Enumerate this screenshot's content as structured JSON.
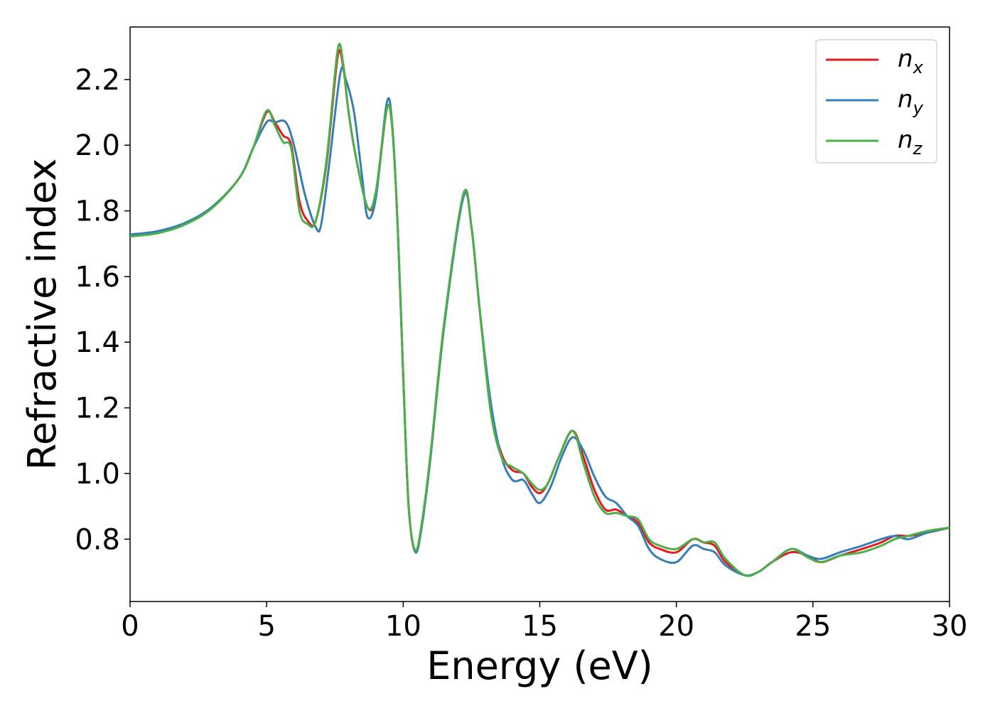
{
  "chart_data": {
    "type": "line",
    "title": "",
    "xlabel": "Energy (eV)",
    "ylabel": "Refractive index",
    "xlim": [
      0,
      30
    ],
    "ylim": [
      0.61,
      2.36
    ],
    "xticks": [
      0,
      5,
      10,
      15,
      20,
      25,
      30
    ],
    "yticks": [
      0.8,
      1.0,
      1.2,
      1.4,
      1.6,
      1.8,
      2.0,
      2.2
    ],
    "xtick_labels": [
      "0",
      "5",
      "10",
      "15",
      "20",
      "25",
      "30"
    ],
    "ytick_labels": [
      "0.8",
      "1.0",
      "1.2",
      "1.4",
      "1.6",
      "1.8",
      "2.0",
      "2.2"
    ],
    "grid": false,
    "legend_position": "top-right",
    "series": [
      {
        "name": "n",
        "subscript": "x",
        "color": "#e41a1c",
        "points": [
          [
            0,
            1.725
          ],
          [
            1,
            1.735
          ],
          [
            2,
            1.76
          ],
          [
            3,
            1.81
          ],
          [
            4,
            1.9
          ],
          [
            4.5,
            1.99
          ],
          [
            5,
            2.1
          ],
          [
            5.3,
            2.07
          ],
          [
            5.6,
            2.03
          ],
          [
            5.9,
            2.0
          ],
          [
            6.2,
            1.83
          ],
          [
            6.5,
            1.77
          ],
          [
            6.8,
            1.77
          ],
          [
            7.2,
            1.95
          ],
          [
            7.6,
            2.27
          ],
          [
            7.8,
            2.24
          ],
          [
            8.0,
            2.1
          ],
          [
            8.3,
            1.95
          ],
          [
            8.7,
            1.81
          ],
          [
            9.0,
            1.85
          ],
          [
            9.4,
            2.11
          ],
          [
            9.6,
            2.05
          ],
          [
            9.8,
            1.75
          ],
          [
            10.0,
            1.3
          ],
          [
            10.2,
            0.9
          ],
          [
            10.45,
            0.76
          ],
          [
            10.7,
            0.85
          ],
          [
            11.0,
            1.05
          ],
          [
            11.5,
            1.45
          ],
          [
            12.2,
            1.85
          ],
          [
            12.5,
            1.75
          ],
          [
            12.8,
            1.5
          ],
          [
            13.2,
            1.2
          ],
          [
            13.6,
            1.06
          ],
          [
            14.0,
            1.01
          ],
          [
            14.4,
            1.0
          ],
          [
            14.7,
            0.96
          ],
          [
            15.0,
            0.94
          ],
          [
            15.3,
            0.97
          ],
          [
            15.7,
            1.05
          ],
          [
            16.2,
            1.13
          ],
          [
            16.6,
            1.05
          ],
          [
            17.0,
            0.95
          ],
          [
            17.4,
            0.89
          ],
          [
            17.8,
            0.89
          ],
          [
            18.2,
            0.87
          ],
          [
            18.6,
            0.85
          ],
          [
            19.0,
            0.79
          ],
          [
            19.4,
            0.77
          ],
          [
            20.0,
            0.76
          ],
          [
            20.6,
            0.8
          ],
          [
            21.0,
            0.79
          ],
          [
            21.4,
            0.78
          ],
          [
            21.8,
            0.73
          ],
          [
            22.5,
            0.69
          ],
          [
            23.0,
            0.7
          ],
          [
            23.5,
            0.73
          ],
          [
            24.2,
            0.76
          ],
          [
            24.8,
            0.75
          ],
          [
            25.3,
            0.73
          ],
          [
            26.0,
            0.75
          ],
          [
            26.8,
            0.77
          ],
          [
            27.5,
            0.79
          ],
          [
            28.0,
            0.81
          ],
          [
            28.5,
            0.81
          ],
          [
            29.2,
            0.82
          ],
          [
            30,
            0.835
          ]
        ]
      },
      {
        "name": "n",
        "subscript": "y",
        "color": "#377eb8",
        "points": [
          [
            0,
            1.728
          ],
          [
            1,
            1.738
          ],
          [
            2,
            1.763
          ],
          [
            3,
            1.812
          ],
          [
            4,
            1.9
          ],
          [
            4.5,
            1.99
          ],
          [
            5,
            2.07
          ],
          [
            5.3,
            2.07
          ],
          [
            5.7,
            2.07
          ],
          [
            6.0,
            2.0
          ],
          [
            6.4,
            1.85
          ],
          [
            6.8,
            1.75
          ],
          [
            7.0,
            1.76
          ],
          [
            7.3,
            1.95
          ],
          [
            7.7,
            2.22
          ],
          [
            7.9,
            2.2
          ],
          [
            8.2,
            2.1
          ],
          [
            8.5,
            1.9
          ],
          [
            8.7,
            1.78
          ],
          [
            9.0,
            1.84
          ],
          [
            9.4,
            2.13
          ],
          [
            9.6,
            2.06
          ],
          [
            9.8,
            1.75
          ],
          [
            10.0,
            1.3
          ],
          [
            10.2,
            0.9
          ],
          [
            10.45,
            0.76
          ],
          [
            10.7,
            0.85
          ],
          [
            11.0,
            1.05
          ],
          [
            11.5,
            1.45
          ],
          [
            12.2,
            1.84
          ],
          [
            12.5,
            1.75
          ],
          [
            12.8,
            1.5
          ],
          [
            13.2,
            1.22
          ],
          [
            13.6,
            1.05
          ],
          [
            14.0,
            0.98
          ],
          [
            14.4,
            0.98
          ],
          [
            14.7,
            0.94
          ],
          [
            15.0,
            0.91
          ],
          [
            15.4,
            0.96
          ],
          [
            15.8,
            1.05
          ],
          [
            16.2,
            1.11
          ],
          [
            16.6,
            1.07
          ],
          [
            17.0,
            0.99
          ],
          [
            17.4,
            0.93
          ],
          [
            17.8,
            0.91
          ],
          [
            18.2,
            0.87
          ],
          [
            18.6,
            0.84
          ],
          [
            19.0,
            0.77
          ],
          [
            19.4,
            0.74
          ],
          [
            20.0,
            0.73
          ],
          [
            20.6,
            0.78
          ],
          [
            21.0,
            0.77
          ],
          [
            21.4,
            0.76
          ],
          [
            21.8,
            0.72
          ],
          [
            22.5,
            0.69
          ],
          [
            23.0,
            0.7
          ],
          [
            23.5,
            0.73
          ],
          [
            24.2,
            0.77
          ],
          [
            24.8,
            0.75
          ],
          [
            25.3,
            0.74
          ],
          [
            26.0,
            0.76
          ],
          [
            26.8,
            0.78
          ],
          [
            27.5,
            0.8
          ],
          [
            28.0,
            0.81
          ],
          [
            28.5,
            0.8
          ],
          [
            29.2,
            0.82
          ],
          [
            30,
            0.835
          ]
        ]
      },
      {
        "name": "n",
        "subscript": "z",
        "color": "#4daf4a",
        "points": [
          [
            0,
            1.722
          ],
          [
            1,
            1.732
          ],
          [
            2,
            1.758
          ],
          [
            3,
            1.808
          ],
          [
            4,
            1.9
          ],
          [
            4.5,
            1.99
          ],
          [
            5,
            2.105
          ],
          [
            5.3,
            2.06
          ],
          [
            5.6,
            2.01
          ],
          [
            5.9,
            1.99
          ],
          [
            6.2,
            1.8
          ],
          [
            6.5,
            1.76
          ],
          [
            6.8,
            1.77
          ],
          [
            7.2,
            1.96
          ],
          [
            7.6,
            2.29
          ],
          [
            7.8,
            2.25
          ],
          [
            8.0,
            2.1
          ],
          [
            8.3,
            1.95
          ],
          [
            8.7,
            1.81
          ],
          [
            9.0,
            1.86
          ],
          [
            9.4,
            2.11
          ],
          [
            9.6,
            2.05
          ],
          [
            9.8,
            1.75
          ],
          [
            10.0,
            1.3
          ],
          [
            10.2,
            0.9
          ],
          [
            10.45,
            0.765
          ],
          [
            10.7,
            0.86
          ],
          [
            11.0,
            1.06
          ],
          [
            11.5,
            1.46
          ],
          [
            12.2,
            1.85
          ],
          [
            12.5,
            1.75
          ],
          [
            12.8,
            1.5
          ],
          [
            13.2,
            1.19
          ],
          [
            13.6,
            1.05
          ],
          [
            14.0,
            1.02
          ],
          [
            14.4,
            1.0
          ],
          [
            14.7,
            0.97
          ],
          [
            15.0,
            0.95
          ],
          [
            15.3,
            0.97
          ],
          [
            15.7,
            1.05
          ],
          [
            16.2,
            1.13
          ],
          [
            16.6,
            1.03
          ],
          [
            17.0,
            0.93
          ],
          [
            17.4,
            0.88
          ],
          [
            17.8,
            0.88
          ],
          [
            18.2,
            0.87
          ],
          [
            18.6,
            0.86
          ],
          [
            19.0,
            0.8
          ],
          [
            19.4,
            0.78
          ],
          [
            20.0,
            0.77
          ],
          [
            20.6,
            0.8
          ],
          [
            21.0,
            0.79
          ],
          [
            21.4,
            0.79
          ],
          [
            21.8,
            0.74
          ],
          [
            22.5,
            0.69
          ],
          [
            23.0,
            0.7
          ],
          [
            23.5,
            0.73
          ],
          [
            24.2,
            0.77
          ],
          [
            24.8,
            0.745
          ],
          [
            25.3,
            0.73
          ],
          [
            26.0,
            0.75
          ],
          [
            26.8,
            0.76
          ],
          [
            27.5,
            0.78
          ],
          [
            28.0,
            0.8
          ],
          [
            28.5,
            0.81
          ],
          [
            29.2,
            0.825
          ],
          [
            30,
            0.835
          ]
        ]
      }
    ]
  }
}
